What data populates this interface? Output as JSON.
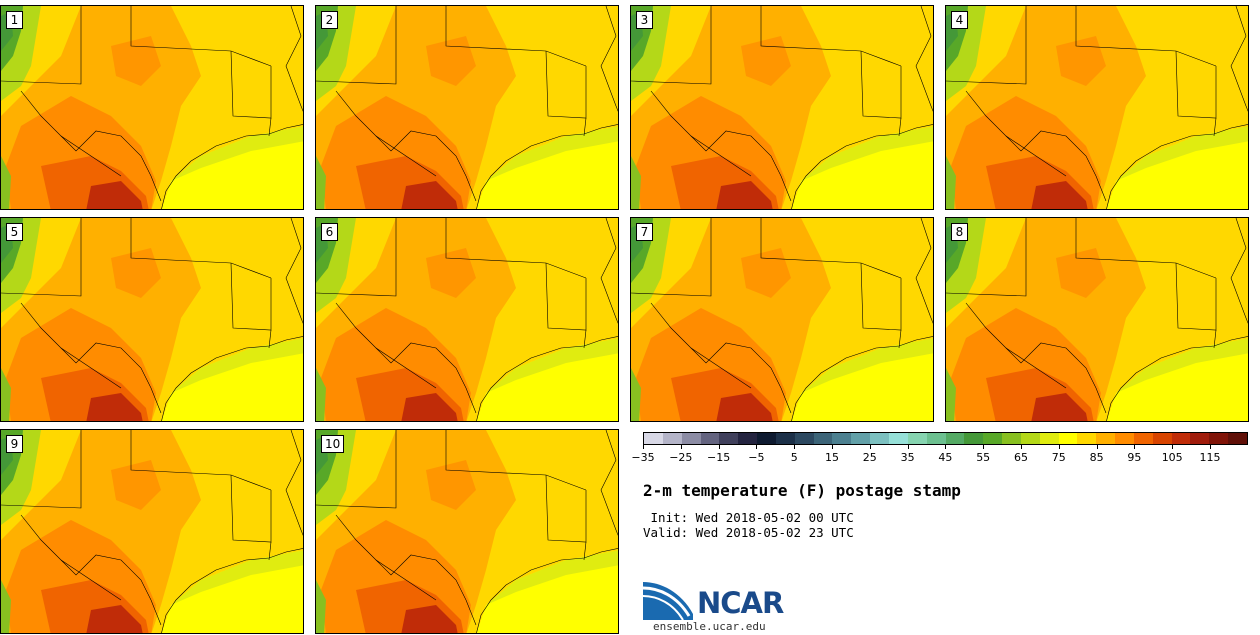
{
  "panels": [
    {
      "label": "1"
    },
    {
      "label": "2"
    },
    {
      "label": "3"
    },
    {
      "label": "4"
    },
    {
      "label": "5"
    },
    {
      "label": "6"
    },
    {
      "label": "7"
    },
    {
      "label": "8"
    },
    {
      "label": "9"
    },
    {
      "label": "10"
    }
  ],
  "colorbar": {
    "colors": [
      "#d8d8e6",
      "#b4b4c8",
      "#8c8ca4",
      "#646480",
      "#40405c",
      "#242440",
      "#0e1a30",
      "#1c3048",
      "#2c4860",
      "#3c6478",
      "#4c8090",
      "#62a0a8",
      "#7cc0c0",
      "#96e0d8",
      "#86d4b0",
      "#6cc090",
      "#54aa64",
      "#449838",
      "#58a828",
      "#88c020",
      "#b4d818",
      "#e0ec10",
      "#ffff00",
      "#ffd800",
      "#ffb000",
      "#ff8c00",
      "#f06400",
      "#d84400",
      "#c02c08",
      "#a01c0c",
      "#801408",
      "#601008"
    ],
    "ticks": [
      "−35",
      "−25",
      "−15",
      "−5",
      "5",
      "15",
      "25",
      "35",
      "45",
      "55",
      "65",
      "75",
      "85",
      "95",
      "105",
      "115"
    ]
  },
  "title": "2-m temperature (F) postage stamp",
  "init_line": " Init: Wed 2018-05-02 00 UTC",
  "valid_line": "Valid: Wed 2018-05-02 23 UTC",
  "logo": {
    "text": "NCAR",
    "url": "ensemble.ucar.edu"
  }
}
